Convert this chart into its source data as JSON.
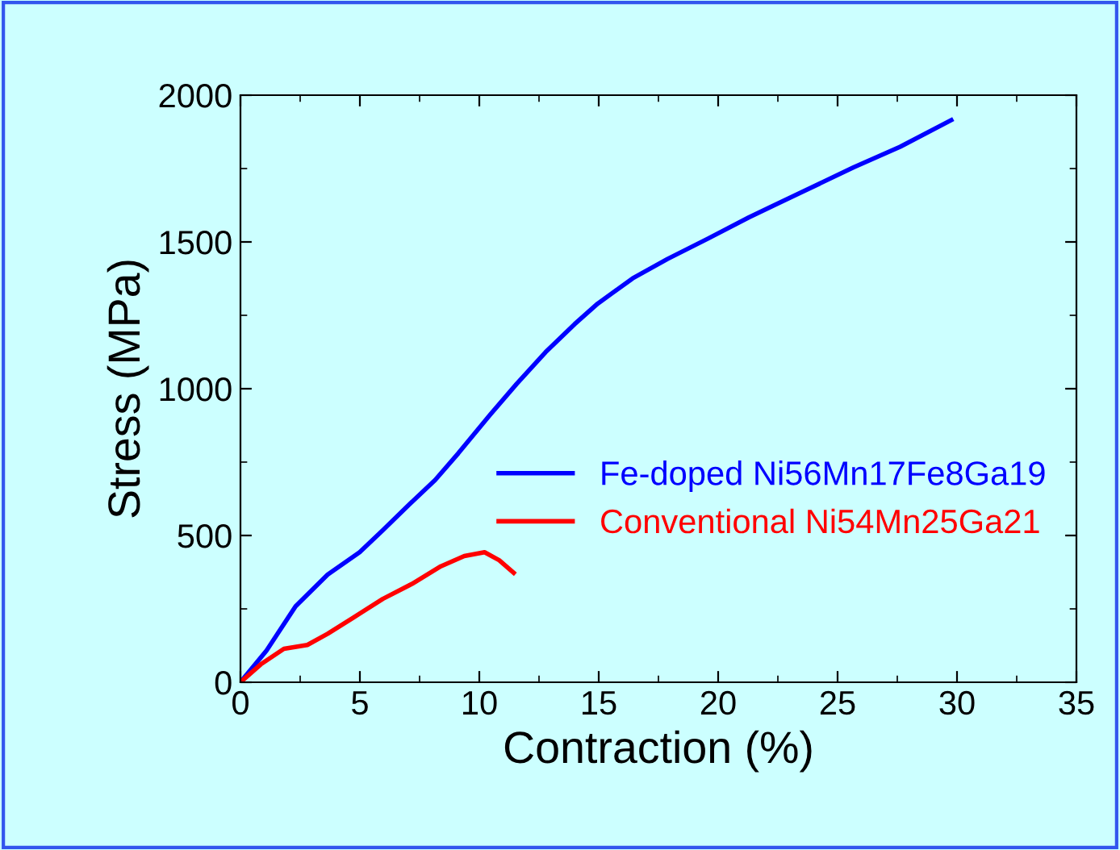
{
  "chart_data": {
    "type": "line",
    "xlabel": "Contraction (%)",
    "ylabel": "Stress (MPa)",
    "xlim": [
      0,
      35
    ],
    "ylim": [
      0,
      2000
    ],
    "xticks": [
      0,
      5,
      10,
      15,
      20,
      25,
      30,
      35
    ],
    "yticks": [
      0,
      500,
      1000,
      1500,
      2000
    ],
    "grid": false,
    "legend": "center right",
    "marker": "none",
    "line_style": "solid",
    "series": [
      {
        "name": "Fe-doped Ni56Mn17Fe8Ga19",
        "color": "#0000ff",
        "x": [
          0,
          1.09,
          2.31,
          3.65,
          4.99,
          5.96,
          7.06,
          8.15,
          9.12,
          10.46,
          11.56,
          12.77,
          13.99,
          14.96,
          16.42,
          17.88,
          19.59,
          21.29,
          23.48,
          25.67,
          27.62,
          29.76
        ],
        "values": [
          0,
          108,
          259,
          367,
          443,
          518,
          605,
          689,
          780,
          912,
          1016,
          1124,
          1220,
          1290,
          1376,
          1442,
          1512,
          1584,
          1669,
          1754,
          1824,
          1915
        ]
      },
      {
        "name": "Conventional Ni54Mn25Ga21",
        "color": "#ff0000",
        "x": [
          0,
          0.85,
          1.82,
          2.8,
          3.65,
          4.74,
          5.96,
          7.18,
          8.39,
          9.37,
          10.22,
          10.83,
          11.44
        ],
        "values": [
          0,
          61,
          114,
          127,
          165,
          221,
          284,
          335,
          395,
          430,
          443,
          416,
          373
        ]
      }
    ]
  }
}
